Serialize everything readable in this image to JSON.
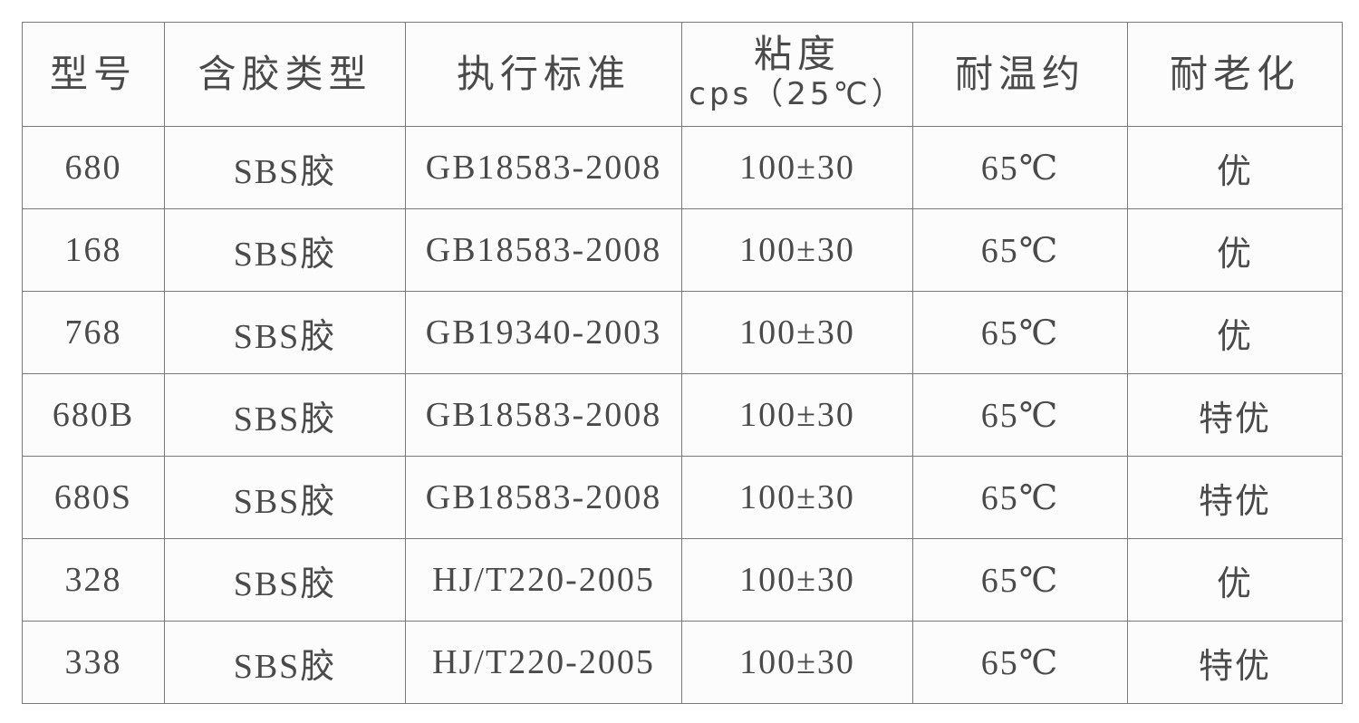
{
  "table": {
    "headers": [
      "型号",
      "含胶类型",
      "执行标准",
      "粘度",
      "耐温约",
      "耐老化"
    ],
    "viscosity_unit": "cps（25℃）",
    "rows": [
      [
        "680",
        "SBS胶",
        "GB18583-2008",
        "100±30",
        "65℃",
        "优"
      ],
      [
        "168",
        "SBS胶",
        "GB18583-2008",
        "100±30",
        "65℃",
        "优"
      ],
      [
        "768",
        "SBS胶",
        "GB19340-2003",
        "100±30",
        "65℃",
        "优"
      ],
      [
        "680B",
        "SBS胶",
        "GB18583-2008",
        "100±30",
        "65℃",
        "特优"
      ],
      [
        "680S",
        "SBS胶",
        "GB18583-2008",
        "100±30",
        "65℃",
        "特优"
      ],
      [
        "328",
        "SBS胶",
        "HJ/T220-2005",
        "100±30",
        "65℃",
        "优"
      ],
      [
        "338",
        "SBS胶",
        "HJ/T220-2005",
        "100±30",
        "65℃",
        "特优"
      ]
    ]
  }
}
